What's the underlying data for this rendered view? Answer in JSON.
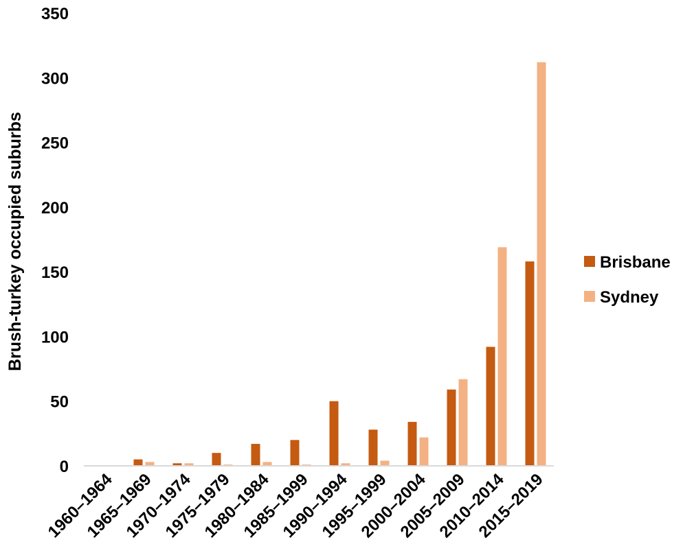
{
  "chart_data": {
    "type": "bar",
    "title": "",
    "xlabel": "",
    "ylabel": "Brush-turkey occupied suburbs",
    "ylim": [
      0,
      350
    ],
    "yticks": [
      0,
      50,
      100,
      150,
      200,
      250,
      300,
      350
    ],
    "grid": false,
    "legend_position": "right",
    "categories": [
      "1960–1964",
      "1965–1969",
      "1970–1974",
      "1975–1979",
      "1980–1984",
      "1985–1999",
      "1990–1994",
      "1995–1999",
      "2000–2004",
      "2005–2009",
      "2010–2014",
      "2015–2019"
    ],
    "series": [
      {
        "name": "Brisbane",
        "color": "#c55a11",
        "values": [
          0,
          5,
          2,
          10,
          17,
          20,
          50,
          28,
          34,
          59,
          92,
          158
        ]
      },
      {
        "name": "Sydney",
        "color": "#f4b183",
        "values": [
          0,
          3,
          2,
          1,
          3,
          1,
          2,
          4,
          22,
          67,
          169,
          312
        ]
      }
    ]
  }
}
